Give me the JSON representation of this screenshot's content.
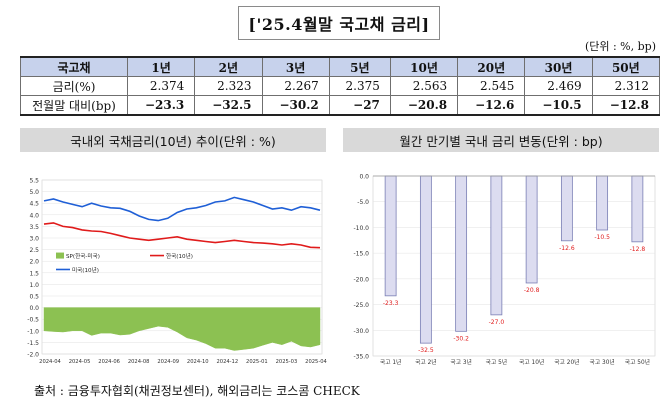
{
  "title": "['25.4월말 국고채 금리]",
  "unit_note": "(단위 : %, bp)",
  "table": {
    "header": [
      "국고채",
      "1년",
      "2년",
      "3년",
      "5년",
      "10년",
      "20년",
      "30년",
      "50년"
    ],
    "rows": [
      {
        "label": "금리(%)",
        "values": [
          "2.374",
          "2.323",
          "2.267",
          "2.375",
          "2.563",
          "2.545",
          "2.469",
          "2.312"
        ]
      },
      {
        "label": "전월말 대비(bp)",
        "values": [
          "−23.3",
          "−32.5",
          "−30.2",
          "−27",
          "−20.8",
          "−12.6",
          "−10.5",
          "−12.8"
        ]
      }
    ]
  },
  "left_chart_title": "국내외 국채금리(10년) 추이(단위 : %)",
  "right_chart_title": "월간 만기별 국내 금리 변동(단위 : bp)",
  "source": "출처 : 금융투자협회(채권정보센터), 해외금리는 코스콤 CHECK",
  "colors": {
    "us": "#1f5fd6",
    "kr": "#e01b1b",
    "spread": "#8cc152",
    "bar_fill": "#dcdcf0",
    "bar_stroke": "#7b7fb5",
    "label_red": "#e01b1b"
  },
  "chart_data": [
    {
      "type": "line",
      "x_ticks": [
        "2024-04",
        "2024-05",
        "2024-06",
        "2024-08",
        "2024-09",
        "2024-10",
        "2024-12",
        "2025-01",
        "2025-03",
        "2025-04"
      ],
      "y_ticks": [
        "5.5",
        "5.0",
        "4.5",
        "4.0",
        "3.5",
        "3.0",
        "2.5",
        "2.0",
        "1.5",
        "1.0",
        "0.5",
        "0.0",
        "-0.5",
        "-1.0",
        "-1.5",
        "-2.0"
      ],
      "ylim": [
        -2.0,
        5.5
      ],
      "legend": [
        "SP(한국-미국)",
        "한국(10년)",
        "미국(10년)"
      ],
      "series": [
        {
          "name": "미국(10년)",
          "values": [
            4.6,
            4.68,
            4.55,
            4.45,
            4.35,
            4.5,
            4.38,
            4.3,
            4.28,
            4.15,
            3.95,
            3.8,
            3.75,
            3.85,
            4.1,
            4.25,
            4.3,
            4.4,
            4.55,
            4.6,
            4.75,
            4.65,
            4.55,
            4.4,
            4.25,
            4.3,
            4.2,
            4.35,
            4.3,
            4.2
          ]
        },
        {
          "name": "한국(10년)",
          "values": [
            3.6,
            3.65,
            3.5,
            3.45,
            3.35,
            3.3,
            3.28,
            3.2,
            3.1,
            3.0,
            2.95,
            2.9,
            2.95,
            3.0,
            3.05,
            2.95,
            2.9,
            2.85,
            2.8,
            2.85,
            2.9,
            2.85,
            2.8,
            2.78,
            2.75,
            2.7,
            2.75,
            2.7,
            2.6,
            2.58
          ]
        },
        {
          "name": "SP(한국-미국)",
          "values": [
            -1.0,
            -1.03,
            -1.05,
            -1.0,
            -1.0,
            -1.2,
            -1.1,
            -1.1,
            -1.18,
            -1.15,
            -1.0,
            -0.9,
            -0.8,
            -0.85,
            -1.05,
            -1.3,
            -1.4,
            -1.55,
            -1.75,
            -1.75,
            -1.85,
            -1.8,
            -1.75,
            -1.62,
            -1.5,
            -1.6,
            -1.45,
            -1.65,
            -1.7,
            -1.6
          ]
        }
      ]
    },
    {
      "type": "bar",
      "categories": [
        "국고 1년",
        "국고 2년",
        "국고 3년",
        "국고 5년",
        "국고 10년",
        "국고 20년",
        "국고 30년",
        "국고 50년"
      ],
      "values": [
        -23.3,
        -32.5,
        -30.2,
        -27.0,
        -20.8,
        -12.6,
        -10.5,
        -12.8
      ],
      "value_labels": [
        "-23.3",
        "-32.5",
        "-30.2",
        "-27.0",
        "-20.8",
        "-12.6",
        "-10.5",
        "-12.8"
      ],
      "y_ticks": [
        "0.0",
        "-5.0",
        "-10.0",
        "-15.0",
        "-20.0",
        "-25.0",
        "-30.0",
        "-35.0"
      ],
      "ylim": [
        -35,
        0
      ]
    }
  ]
}
